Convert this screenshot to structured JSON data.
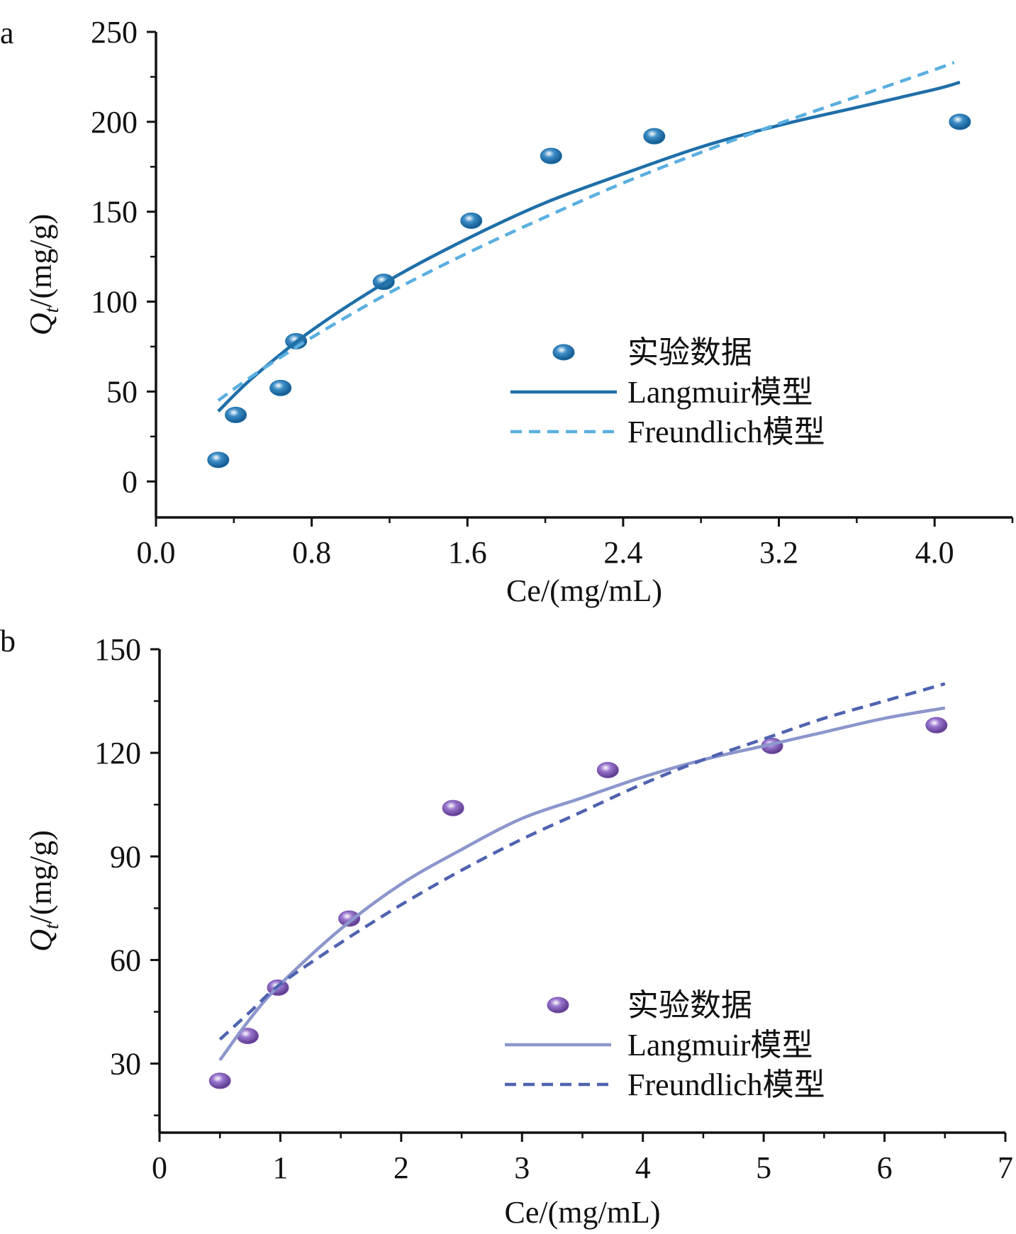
{
  "chart_data": [
    {
      "type": "scatter",
      "panel_label": "a",
      "xlabel": "Ce/(mg/mL)",
      "ylabel": {
        "main": "Q",
        "sub": "t",
        "rest": "/(mg/g)"
      },
      "xlim": [
        0.0,
        4.4
      ],
      "ylim": [
        -20,
        250
      ],
      "xticks": [
        "0.0",
        "0.8",
        "1.6",
        "2.4",
        "3.2",
        "4.0"
      ],
      "xtick_values": [
        0.0,
        0.8,
        1.6,
        2.4,
        3.2,
        4.0
      ],
      "yticks": [
        "0",
        "50",
        "100",
        "150",
        "200",
        "250"
      ],
      "ytick_values": [
        0,
        50,
        100,
        150,
        200,
        250
      ],
      "legend_position": "right-middle",
      "series": [
        {
          "name": "实验数据",
          "kind": "points",
          "color": "#1f6fa8",
          "x": [
            0.32,
            0.41,
            0.64,
            0.72,
            1.17,
            1.62,
            2.03,
            2.56,
            4.13
          ],
          "y": [
            12,
            37,
            52,
            78,
            111,
            145,
            181,
            192,
            200
          ]
        },
        {
          "name": "Langmuir模型",
          "kind": "solid-line",
          "color": "#1f6fa8",
          "x": [
            0.32,
            0.5,
            0.8,
            1.2,
            1.6,
            2.0,
            2.4,
            2.8,
            3.2,
            3.6,
            4.0,
            4.13
          ],
          "y": [
            39,
            58,
            84,
            112,
            135,
            155,
            171,
            186,
            198,
            208,
            218,
            222
          ]
        },
        {
          "name": "Freundlich模型",
          "kind": "dashed-line",
          "color": "#5aafe0",
          "x": [
            0.32,
            0.5,
            0.8,
            1.2,
            1.6,
            2.0,
            2.4,
            2.8,
            3.2,
            3.6,
            4.0,
            4.1
          ],
          "y": [
            45,
            59,
            80,
            105,
            127,
            147,
            166,
            183,
            199,
            214,
            229,
            233
          ]
        }
      ]
    },
    {
      "type": "scatter",
      "panel_label": "b",
      "xlabel": "Ce/(mg/mL)",
      "ylabel": {
        "main": "Q",
        "sub": "t",
        "rest": "/(mg/g)"
      },
      "xlim": [
        0,
        7
      ],
      "ylim": [
        10,
        150
      ],
      "xticks": [
        "0",
        "1",
        "2",
        "3",
        "4",
        "5",
        "6",
        "7"
      ],
      "xtick_values": [
        0,
        1,
        2,
        3,
        4,
        5,
        6,
        7
      ],
      "yticks": [
        "30",
        "60",
        "90",
        "120",
        "150"
      ],
      "ytick_values": [
        30,
        60,
        90,
        120,
        150
      ],
      "legend_position": "right-bottom",
      "series": [
        {
          "name": "实验数据",
          "kind": "points",
          "color": "#7b55b0",
          "x": [
            0.5,
            0.73,
            0.98,
            1.57,
            2.43,
            3.71,
            5.07,
            6.43
          ],
          "y": [
            25,
            38,
            52,
            72,
            104,
            115,
            122,
            128
          ]
        },
        {
          "name": "Langmuir模型",
          "kind": "solid-line",
          "color": "#8c96cc",
          "x": [
            0.5,
            0.75,
            1.0,
            1.5,
            2.0,
            2.5,
            3.0,
            3.5,
            4.0,
            4.5,
            5.0,
            5.5,
            6.0,
            6.5
          ],
          "y": [
            31,
            43,
            53,
            69,
            82,
            92,
            101,
            107,
            113,
            118,
            122,
            126,
            130,
            133
          ]
        },
        {
          "name": "Freundlich模型",
          "kind": "dashed-line",
          "color": "#4f63b0",
          "x": [
            0.5,
            0.75,
            1.0,
            1.5,
            2.0,
            2.5,
            3.0,
            3.5,
            4.0,
            4.5,
            5.0,
            5.5,
            6.0,
            6.5
          ],
          "y": [
            37,
            45,
            53,
            65,
            76,
            86,
            95,
            103,
            111,
            118,
            124,
            130,
            135,
            140
          ]
        }
      ]
    }
  ]
}
